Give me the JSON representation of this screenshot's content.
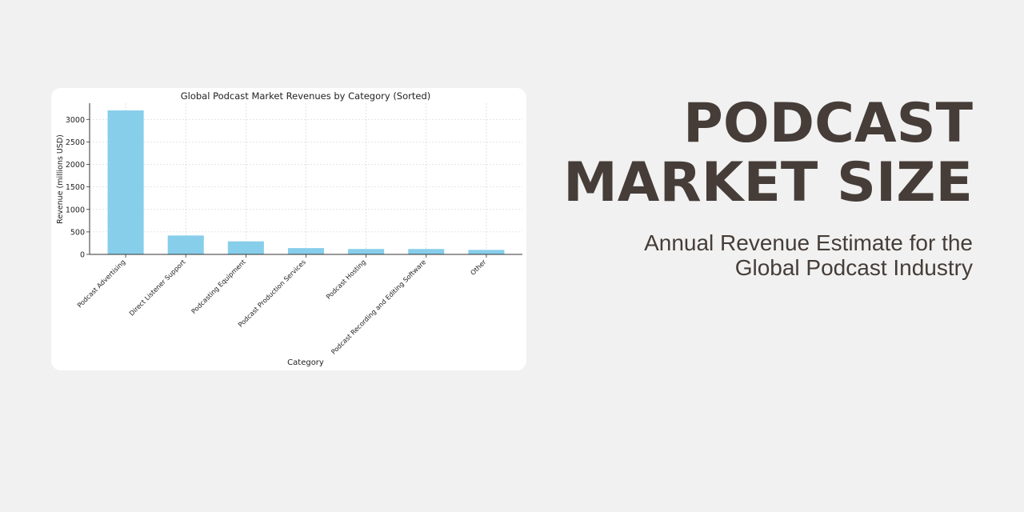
{
  "headline": {
    "line1": "PODCAST",
    "line2": "MARKET SIZE",
    "subtitle_line1": "Annual Revenue Estimate for the",
    "subtitle_line2": "Global Podcast Industry"
  },
  "colors": {
    "background": "#f1f1f1",
    "bar": "#87ceeb",
    "headline": "#463d38"
  },
  "chart_data": {
    "type": "bar",
    "title": "Global Podcast Market Revenues by Category (Sorted)",
    "xlabel": "Category",
    "ylabel": "Revenue (millions USD)",
    "categories": [
      "Podcast Advertising",
      "Direct Listener Support",
      "Podcasting Equipment",
      "Podcast Production Services",
      "Podcast Hosting",
      "Podcast Recording and Editing Software",
      "Other"
    ],
    "values": [
      3200,
      420,
      290,
      140,
      120,
      120,
      100
    ],
    "yticks": [
      0,
      500,
      1000,
      1500,
      2000,
      2500,
      3000
    ],
    "ylim": [
      0,
      3360
    ],
    "grid": true
  }
}
